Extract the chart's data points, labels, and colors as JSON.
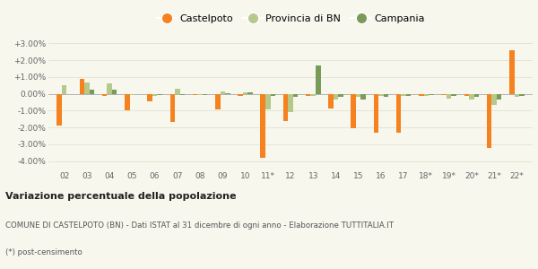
{
  "categories": [
    "02",
    "03",
    "04",
    "05",
    "06",
    "07",
    "08",
    "09",
    "10",
    "11*",
    "12",
    "13",
    "14",
    "15",
    "16",
    "17",
    "18*",
    "19*",
    "20*",
    "21*",
    "22*"
  ],
  "castelpoto": [
    -1.9,
    0.9,
    -0.15,
    -1.0,
    -0.45,
    -1.65,
    -0.05,
    -0.95,
    -0.1,
    -3.8,
    -1.6,
    -0.1,
    -0.85,
    -2.05,
    -2.3,
    -2.3,
    -0.1,
    -0.05,
    -0.1,
    -3.2,
    2.6
  ],
  "provincia_bn": [
    0.5,
    0.65,
    0.6,
    -0.05,
    -0.1,
    0.3,
    -0.05,
    0.15,
    0.1,
    -0.95,
    -1.1,
    -0.15,
    -0.35,
    -0.2,
    -0.1,
    -0.15,
    -0.15,
    -0.3,
    -0.35,
    -0.65,
    -0.2
  ],
  "campania": [
    0.0,
    0.25,
    0.25,
    0.0,
    -0.05,
    -0.05,
    -0.05,
    0.05,
    0.1,
    -0.1,
    -0.2,
    1.7,
    -0.2,
    -0.35,
    -0.2,
    -0.15,
    -0.05,
    -0.1,
    -0.2,
    -0.35,
    -0.1
  ],
  "color_castelpoto": "#f5821f",
  "color_provincia": "#b5c98a",
  "color_campania": "#7a9b57",
  "title": "Variazione percentuale della popolazione",
  "subtitle": "COMUNE DI CASTELPOTO (BN) - Dati ISTAT al 31 dicembre di ogni anno - Elaborazione TUTTITALIA.IT",
  "footnote": "(*) post-censimento",
  "ylim": [
    -4.5,
    3.5
  ],
  "yticks": [
    -4.0,
    -3.0,
    -2.0,
    -1.0,
    0.0,
    1.0,
    2.0,
    3.0
  ],
  "legend_labels": [
    "Castelpoto",
    "Provincia di BN",
    "Campania"
  ],
  "background_color": "#f7f7ee"
}
